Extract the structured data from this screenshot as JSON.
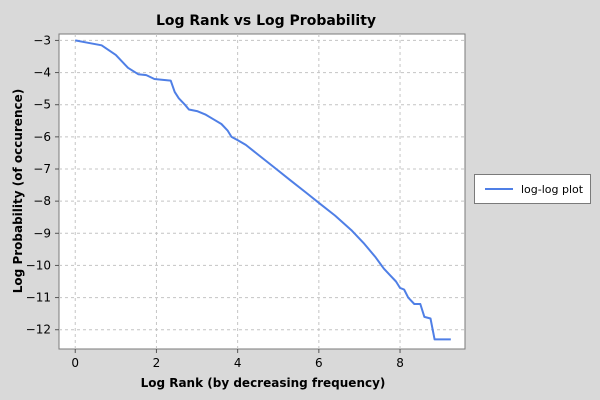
{
  "chart_data": {
    "type": "line",
    "title": "Log Rank vs Log Probability",
    "xlabel": "Log Rank (by decreasing frequency)",
    "ylabel": "Log Probability (of occurence)",
    "xlim": [
      -0.4,
      9.6
    ],
    "ylim": [
      -12.6,
      -2.8
    ],
    "x_ticks": [
      0,
      2,
      4,
      6,
      8
    ],
    "y_ticks": [
      -3,
      -4,
      -5,
      -6,
      -7,
      -8,
      -9,
      -10,
      -11,
      -12
    ],
    "grid": true,
    "legend_position": "right",
    "series": [
      {
        "name": "log-log plot",
        "color": "#4f7fe6",
        "x": [
          0.0,
          0.3,
          0.65,
          1.0,
          1.3,
          1.55,
          1.75,
          1.95,
          2.1,
          2.35,
          2.45,
          2.55,
          2.7,
          2.8,
          3.0,
          3.2,
          3.4,
          3.6,
          3.75,
          3.85,
          4.0,
          4.2,
          4.5,
          4.9,
          5.3,
          5.7,
          6.0,
          6.4,
          6.8,
          7.1,
          7.4,
          7.6,
          7.75,
          7.9,
          8.0,
          8.1,
          8.2,
          8.35,
          8.5,
          8.6,
          8.75,
          8.85,
          9.0,
          9.25
        ],
        "y": [
          -3.0,
          -3.07,
          -3.15,
          -3.45,
          -3.85,
          -4.05,
          -4.08,
          -4.2,
          -4.22,
          -4.25,
          -4.6,
          -4.8,
          -5.0,
          -5.15,
          -5.2,
          -5.3,
          -5.45,
          -5.6,
          -5.8,
          -6.0,
          -6.1,
          -6.25,
          -6.55,
          -6.95,
          -7.35,
          -7.75,
          -8.05,
          -8.45,
          -8.9,
          -9.3,
          -9.75,
          -10.1,
          -10.3,
          -10.5,
          -10.7,
          -10.75,
          -11.0,
          -11.2,
          -11.2,
          -11.6,
          -11.65,
          -12.3,
          -12.3,
          -12.3
        ]
      }
    ]
  }
}
